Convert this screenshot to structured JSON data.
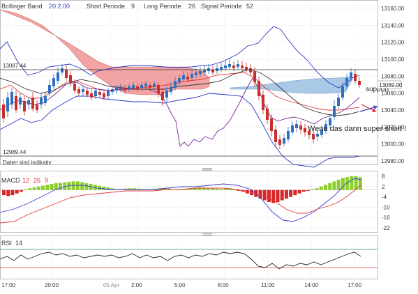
{
  "header": {
    "bollinger_label": "Bollinger Band",
    "bollinger_params": "20  2.00",
    "short_label": "Short Periode",
    "short_value": "9",
    "long_label": "Long Periode",
    "long_value": "26",
    "signal_label": "Signal Periode",
    "signal_value": "52"
  },
  "price_panel": {
    "high_level_label": "13087.44",
    "low_level_label": "12989.44",
    "disclaimer": "Daten sind indikativ",
    "current_price_badge": "13069.00",
    "annotation_support": "support",
    "annotation_short": "Wenn das dann super short !"
  },
  "macd_panel": {
    "title": "MACD",
    "p1": "12",
    "p2": "26",
    "p3": "9"
  },
  "rsi_panel": {
    "title": "RSI",
    "period": "14"
  },
  "colors": {
    "bullish": "#2f6fbe",
    "bearish": "#c8302b",
    "bollinger": "#2b35c8",
    "ichimoku_red": "#f2a3a3",
    "ichimoku_blue": "#a9c9e6",
    "histogram_pos": "#8cce2e",
    "histogram_neg": "#d62828",
    "macd_line": "#3a3ad6",
    "signal_line": "#e23c3c",
    "rsi_line": "#222222",
    "rsi_upper": "#2a8a8a",
    "rsi_lower": "#e23c3c"
  },
  "chart_data": [
    {
      "type": "candlestick",
      "ylim": [
        12975,
        13165
      ],
      "yticks": [
        "13160.00",
        "13140.00",
        "13120.00",
        "13100.00",
        "13080.00",
        "13060.00",
        "13040.00",
        "13020.00",
        "13000.00",
        "12980.00"
      ],
      "ytick_values": [
        13160,
        13140,
        13120,
        13100,
        13080,
        13060,
        13040,
        13020,
        13000,
        12980
      ],
      "xticks": [
        "17:00",
        "20:00",
        "05 Apr",
        "2:00",
        "5:00",
        "8:00",
        "11:00",
        "14:00",
        "17:00"
      ],
      "reference_levels": [
        13087.44,
        12989.44
      ]
    },
    {
      "type": "bar",
      "title": "MACD 12 26 9",
      "ylim": [
        -24,
        10
      ],
      "yticks": [
        "8",
        "2",
        "-4",
        "-10",
        "-16",
        "-22"
      ],
      "ytick_values": [
        8,
        2,
        -4,
        -10,
        -16,
        -22
      ]
    },
    {
      "type": "line",
      "title": "RSI 14",
      "ylim": [
        0,
        100
      ],
      "levels": [
        70,
        30
      ]
    }
  ]
}
